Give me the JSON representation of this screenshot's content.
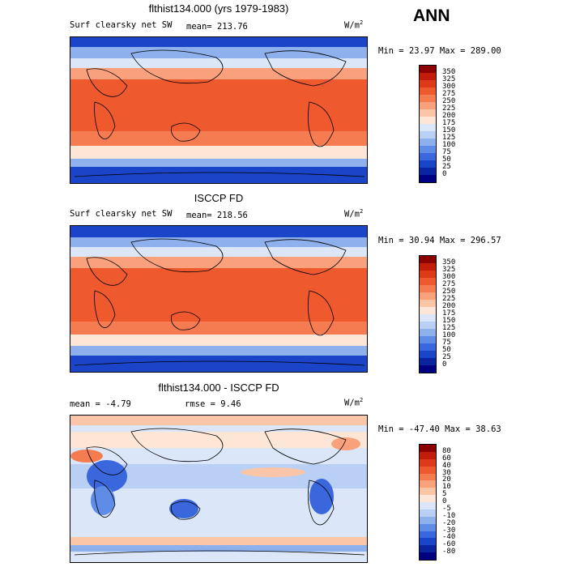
{
  "season": "ANN",
  "panels": [
    {
      "title": "flthist134.000 (yrs 1979-1983)",
      "variable": "Surf clearsky net SW",
      "stat1": "mean= 213.76",
      "stat2": "",
      "units_base": "W/m",
      "units_exp": "2",
      "minmax": "Min =  23.97 Max = 289.00",
      "colorbar_labels": [
        "350",
        "325",
        "300",
        "275",
        "250",
        "225",
        "200",
        "175",
        "150",
        "125",
        "100",
        "75",
        "50",
        "25",
        "0"
      ],
      "colorbar_colors": [
        "#8b0000",
        "#c21d0b",
        "#dd3a1a",
        "#ee5a2e",
        "#f57b50",
        "#f9a07c",
        "#fbc6a8",
        "#fde6d6",
        "#dbe6f8",
        "#b9cff3",
        "#8eb1ee",
        "#5f8ce6",
        "#3a67dc",
        "#1a45c9",
        "#0a24a0",
        "#000080"
      ]
    },
    {
      "title": "ISCCP FD",
      "variable": "Surf clearsky net SW",
      "stat1": "mean= 218.56",
      "stat2": "",
      "units_base": "W/m",
      "units_exp": "2",
      "minmax": "Min =  30.94 Max = 296.57",
      "colorbar_labels": [
        "350",
        "325",
        "300",
        "275",
        "250",
        "225",
        "200",
        "175",
        "150",
        "125",
        "100",
        "75",
        "50",
        "25",
        "0"
      ],
      "colorbar_colors": [
        "#8b0000",
        "#c21d0b",
        "#dd3a1a",
        "#ee5a2e",
        "#f57b50",
        "#f9a07c",
        "#fbc6a8",
        "#fde6d6",
        "#dbe6f8",
        "#b9cff3",
        "#8eb1ee",
        "#5f8ce6",
        "#3a67dc",
        "#1a45c9",
        "#0a24a0",
        "#000080"
      ]
    },
    {
      "title": "flthist134.000 - ISCCP FD",
      "variable": "",
      "stat1": "mean =   -4.79",
      "stat2": "rmse =   9.46",
      "units_base": "W/m",
      "units_exp": "2",
      "minmax": "Min = -47.40 Max =  38.63",
      "colorbar_labels": [
        "80",
        "60",
        "40",
        "30",
        "20",
        "10",
        "5",
        "0",
        "-5",
        "-10",
        "-20",
        "-30",
        "-40",
        "-60",
        "-80"
      ],
      "colorbar_colors": [
        "#8b0000",
        "#c21d0b",
        "#dd3a1a",
        "#ee5a2e",
        "#f57b50",
        "#f9a07c",
        "#fbc6a8",
        "#fde6d6",
        "#dbe6f8",
        "#b9cff3",
        "#8eb1ee",
        "#5f8ce6",
        "#3a67dc",
        "#1a45c9",
        "#0a24a0",
        "#000080"
      ]
    }
  ]
}
